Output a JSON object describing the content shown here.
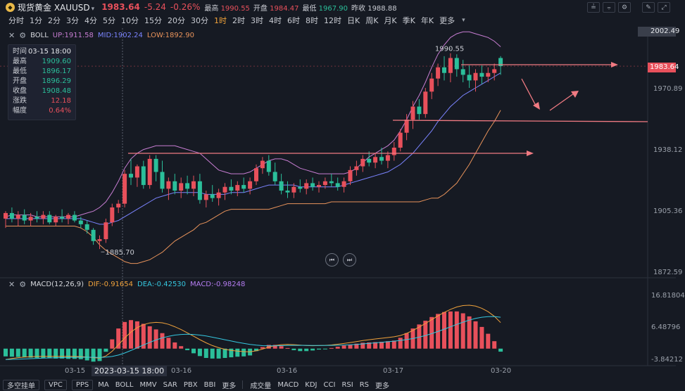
{
  "header": {
    "symbol": "现货黄金 XAUUSD",
    "logo_icon": "gold-coin-icon",
    "price": "1983.64",
    "change": "-5.24",
    "change_pct": "-0.26%",
    "stats": [
      {
        "label": "最高",
        "value": "1990.55",
        "tone": "red"
      },
      {
        "label": "开盘",
        "value": "1984.47",
        "tone": "red"
      },
      {
        "label": "最低",
        "value": "1967.90",
        "tone": "green"
      },
      {
        "label": "昨收",
        "value": "1988.88",
        "tone": "plain"
      }
    ],
    "tool_icons": [
      "chart-style-icon",
      "indicator-icon",
      "settings-icon",
      "draw-icon",
      "fullscreen-icon"
    ]
  },
  "periods": [
    "分时",
    "1分",
    "2分",
    "3分",
    "4分",
    "5分",
    "10分",
    "15分",
    "20分",
    "30分",
    "1时",
    "2时",
    "3时",
    "4时",
    "6时",
    "8时",
    "12时",
    "日K",
    "周K",
    "月K",
    "季K",
    "年K",
    "更多"
  ],
  "active_period": "1时",
  "ohlc_panel": {
    "rows": [
      {
        "k": "时间",
        "v": "03-15 18:00",
        "tone": "w"
      },
      {
        "k": "最高",
        "v": "1909.60",
        "tone": "green"
      },
      {
        "k": "最低",
        "v": "1896.17",
        "tone": "green"
      },
      {
        "k": "开盘",
        "v": "1896.29",
        "tone": "green"
      },
      {
        "k": "收盘",
        "v": "1908.48",
        "tone": "green"
      },
      {
        "k": "涨跌",
        "v": "12.18",
        "tone": "red"
      },
      {
        "k": "幅度",
        "v": "0.64%",
        "tone": "red"
      }
    ]
  },
  "boll_label": {
    "name": "BOLL",
    "up": "UP:1911.58",
    "mid": "MID:1902.24",
    "low": "LOW:1892.90"
  },
  "macd_label": {
    "name": "MACD(12,26,9)",
    "dif": "DIF:-0.91654",
    "dea": "DEA:-0.42530",
    "macd": "MACD:-0.98248"
  },
  "price_axis": [
    "2002.49",
    "1970.89",
    "1938.12",
    "1905.36",
    "1872.59"
  ],
  "current_price_tag": "1983.64",
  "macd_axis": [
    "16.81804",
    "6.48796",
    "-3.84212"
  ],
  "annotations": {
    "high_label": "1990.55",
    "low_label": "1885.70"
  },
  "time_axis": [
    "03-15",
    "03-16",
    "03-16",
    "03-17",
    "03-20"
  ],
  "cursor_time": "2023-03-15 18:00",
  "bottom_bar": {
    "buttons": [
      "多空挂单",
      "VPC",
      "PPS"
    ],
    "main_indicators": [
      "MA",
      "BOLL",
      "MMV",
      "SAR",
      "PBX",
      "BBI",
      "更多"
    ],
    "sub_indicators": [
      "成交量",
      "MACD",
      "KDJ",
      "CCI",
      "RSI",
      "RS",
      "更多"
    ]
  },
  "colors": {
    "up": "#e8505b",
    "down": "#2bbf9a",
    "boll_up": "#c77dd2",
    "boll_mid": "#7b84ff",
    "boll_low": "#e8935b",
    "dif": "#f0a23b",
    "dea": "#35c8e0",
    "background": "#161a23"
  },
  "chart_data": {
    "type": "candlestick",
    "title": "",
    "ylim": [
      1872.59,
      2002.49
    ],
    "candles": [
      [
        1902,
        1906,
        1897,
        1905
      ],
      [
        1905,
        1908,
        1900,
        1902
      ],
      [
        1902,
        1906,
        1898,
        1904
      ],
      [
        1904,
        1907,
        1899,
        1901
      ],
      [
        1901,
        1905,
        1898,
        1903
      ],
      [
        1903,
        1906,
        1900,
        1902
      ],
      [
        1902,
        1906,
        1899,
        1904
      ],
      [
        1904,
        1906,
        1899,
        1900
      ],
      [
        1900,
        1904,
        1898,
        1903
      ],
      [
        1903,
        1907,
        1900,
        1902
      ],
      [
        1902,
        1905,
        1899,
        1904
      ],
      [
        1904,
        1906,
        1900,
        1901
      ],
      [
        1901,
        1903,
        1897,
        1899
      ],
      [
        1899,
        1901,
        1894,
        1896
      ],
      [
        1896,
        1897,
        1888,
        1890
      ],
      [
        1890,
        1893,
        1885.7,
        1891
      ],
      [
        1891,
        1902,
        1889,
        1900
      ],
      [
        1900,
        1910,
        1898,
        1908
      ],
      [
        1908,
        1912,
        1905,
        1910
      ],
      [
        1910,
        1928,
        1908,
        1926
      ],
      [
        1926,
        1934,
        1920,
        1924
      ],
      [
        1924,
        1931,
        1919,
        1930
      ],
      [
        1930,
        1933,
        1918,
        1920
      ],
      [
        1920,
        1936,
        1918,
        1934
      ],
      [
        1934,
        1936,
        1922,
        1927
      ],
      [
        1927,
        1933,
        1916,
        1918
      ],
      [
        1918,
        1924,
        1912,
        1922
      ],
      [
        1922,
        1926,
        1915,
        1917
      ],
      [
        1917,
        1924,
        1913,
        1921
      ],
      [
        1921,
        1925,
        1915,
        1918
      ],
      [
        1918,
        1925,
        1914,
        1922
      ],
      [
        1922,
        1926,
        1910,
        1912
      ],
      [
        1912,
        1917,
        1908,
        1915
      ],
      [
        1915,
        1920,
        1911,
        1913
      ],
      [
        1913,
        1918,
        1909,
        1916
      ],
      [
        1916,
        1921,
        1912,
        1919
      ],
      [
        1919,
        1923,
        1915,
        1917
      ],
      [
        1917,
        1922,
        1914,
        1920
      ],
      [
        1920,
        1924,
        1916,
        1918
      ],
      [
        1918,
        1924,
        1915,
        1922
      ],
      [
        1922,
        1931,
        1920,
        1929
      ],
      [
        1929,
        1935,
        1926,
        1933
      ],
      [
        1933,
        1936,
        1925,
        1927
      ],
      [
        1927,
        1932,
        1920,
        1922
      ],
      [
        1922,
        1926,
        1915,
        1917
      ],
      [
        1917,
        1922,
        1913,
        1916
      ],
      [
        1916,
        1921,
        1913,
        1919
      ],
      [
        1919,
        1923,
        1916,
        1918
      ],
      [
        1918,
        1923,
        1915,
        1921
      ],
      [
        1921,
        1924,
        1917,
        1919
      ],
      [
        1919,
        1922,
        1916,
        1920
      ],
      [
        1920,
        1924,
        1918,
        1922
      ],
      [
        1922,
        1926,
        1919,
        1921
      ],
      [
        1921,
        1924,
        1917,
        1919
      ],
      [
        1919,
        1924,
        1916,
        1922
      ],
      [
        1922,
        1930,
        1920,
        1928
      ],
      [
        1928,
        1933,
        1925,
        1930
      ],
      [
        1930,
        1936,
        1927,
        1934
      ],
      [
        1934,
        1938,
        1930,
        1932
      ],
      [
        1932,
        1937,
        1929,
        1935
      ],
      [
        1935,
        1940,
        1931,
        1933
      ],
      [
        1933,
        1938,
        1929,
        1936
      ],
      [
        1936,
        1943,
        1933,
        1940
      ],
      [
        1940,
        1950,
        1938,
        1948
      ],
      [
        1948,
        1958,
        1944,
        1955
      ],
      [
        1955,
        1965,
        1950,
        1962
      ],
      [
        1962,
        1966,
        1955,
        1958
      ],
      [
        1958,
        1972,
        1956,
        1970
      ],
      [
        1970,
        1980,
        1966,
        1977
      ],
      [
        1977,
        1985,
        1973,
        1983
      ],
      [
        1983,
        1989,
        1976,
        1980
      ],
      [
        1980,
        1990.55,
        1975,
        1988
      ],
      [
        1988,
        1990,
        1978,
        1982
      ],
      [
        1982,
        1987,
        1975,
        1979
      ],
      [
        1979,
        1984,
        1972,
        1976
      ],
      [
        1976,
        1982,
        1970,
        1980
      ],
      [
        1980,
        1984,
        1974,
        1978
      ],
      [
        1978,
        1983,
        1975,
        1980
      ],
      [
        1980,
        1985,
        1976,
        1982
      ],
      [
        1988,
        1989,
        1979,
        1983.64
      ]
    ],
    "boll_upper": [
      1903,
      1904,
      1904,
      1904,
      1904,
      1903,
      1903,
      1903,
      1903,
      1903,
      1903,
      1903,
      1904,
      1905,
      1906,
      1908,
      1911,
      1916,
      1922,
      1929,
      1934,
      1937,
      1939,
      1940,
      1941,
      1941,
      1941,
      1941,
      1940,
      1939,
      1938,
      1937,
      1934,
      1931,
      1928,
      1927,
      1926,
      1926,
      1926,
      1927,
      1929,
      1931,
      1933,
      1934,
      1934,
      1933,
      1931,
      1929,
      1928,
      1927,
      1926,
      1926,
      1926,
      1926,
      1926,
      1927,
      1929,
      1932,
      1935,
      1937,
      1939,
      1941,
      1944,
      1949,
      1955,
      1962,
      1968,
      1975,
      1983,
      1990,
      1995,
      1999,
      2001,
      2002,
      2002,
      2001,
      2000,
      1999,
      1997,
      1994
    ],
    "boll_mid": [
      1902,
      1902,
      1902,
      1902,
      1902,
      1902,
      1902,
      1902,
      1902,
      1902,
      1902,
      1902,
      1902,
      1901,
      1900,
      1899,
      1899,
      1900,
      1901,
      1903,
      1905,
      1907,
      1909,
      1911,
      1913,
      1914,
      1915,
      1916,
      1916,
      1916,
      1916,
      1916,
      1915,
      1915,
      1915,
      1915,
      1916,
      1916,
      1916,
      1917,
      1918,
      1919,
      1920,
      1920,
      1920,
      1920,
      1920,
      1919,
      1919,
      1919,
      1919,
      1919,
      1919,
      1919,
      1920,
      1921,
      1922,
      1923,
      1924,
      1925,
      1926,
      1927,
      1929,
      1931,
      1934,
      1937,
      1941,
      1945,
      1949,
      1954,
      1958,
      1962,
      1965,
      1968,
      1970,
      1972,
      1974,
      1976,
      1978,
      1980
    ],
    "boll_lower": [
      1898,
      1898,
      1898,
      1898,
      1898,
      1898,
      1898,
      1898,
      1898,
      1898,
      1898,
      1898,
      1897,
      1895,
      1892,
      1888,
      1885,
      1883,
      1881,
      1879,
      1878,
      1878,
      1879,
      1880,
      1882,
      1884,
      1887,
      1890,
      1892,
      1894,
      1896,
      1899,
      1900,
      1902,
      1904,
      1906,
      1907,
      1907,
      1907,
      1907,
      1907,
      1907,
      1907,
      1908,
      1909,
      1910,
      1910,
      1910,
      1910,
      1910,
      1910,
      1910,
      1911,
      1911,
      1911,
      1911,
      1911,
      1911,
      1911,
      1911,
      1911,
      1911,
      1911,
      1911,
      1911,
      1911,
      1911,
      1912,
      1913,
      1913,
      1915,
      1918,
      1921,
      1926,
      1931,
      1937,
      1943,
      1949,
      1954,
      1960
    ],
    "macd_hist": [
      -2.5,
      -2.6,
      -2.7,
      -2.8,
      -2.9,
      -3.0,
      -3.1,
      -3.1,
      -3.2,
      -3.2,
      -3.3,
      -3.3,
      -3.4,
      -3.8,
      -4.2,
      -4.0,
      -1.0,
      3.0,
      6.5,
      8.6,
      9.2,
      8.8,
      8.0,
      7.2,
      6.2,
      5.0,
      3.5,
      2.0,
      0.8,
      -0.5,
      -1.5,
      -2.4,
      -3.0,
      -3.2,
      -3.2,
      -3.0,
      -2.8,
      -2.6,
      -2.5,
      -2.2,
      -0.8,
      0.5,
      1.2,
      1.2,
      0.8,
      0.2,
      -0.5,
      -0.8,
      -0.8,
      -0.6,
      -0.3,
      -0.1,
      0.2,
      0.6,
      1.0,
      1.3,
      1.6,
      1.9,
      2.0,
      2.1,
      2.2,
      2.4,
      2.6,
      3.5,
      5.0,
      6.5,
      7.8,
      9.0,
      10.2,
      11.2,
      11.8,
      12.0,
      12.0,
      11.4,
      10.4,
      8.8,
      7.0,
      4.8,
      2.4,
      -0.98
    ]
  }
}
